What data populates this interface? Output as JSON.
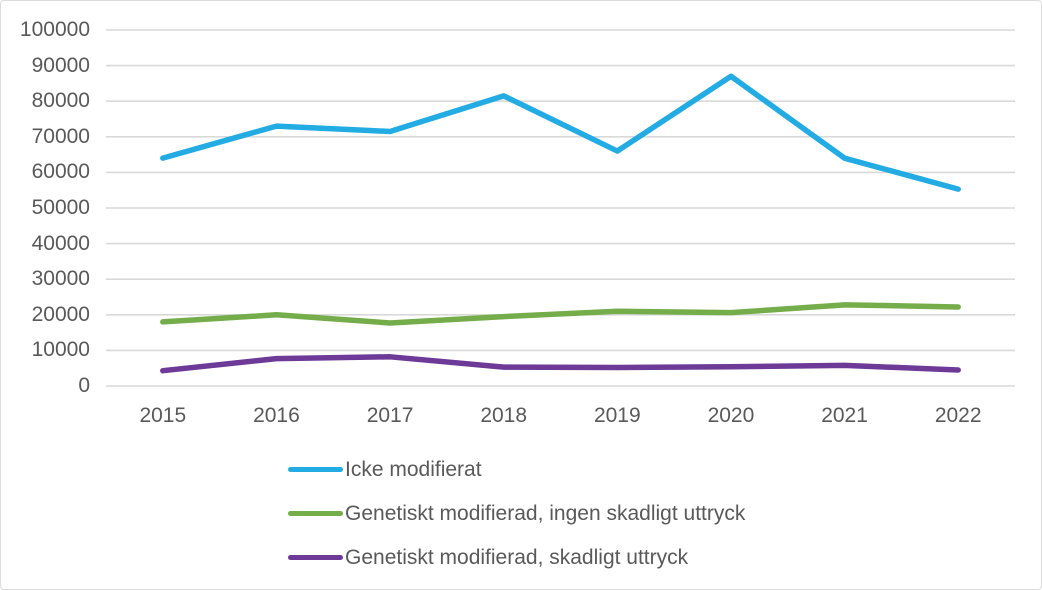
{
  "chart_data": {
    "type": "line",
    "title": "",
    "xlabel": "",
    "ylabel": "",
    "x": [
      "2015",
      "2016",
      "2017",
      "2018",
      "2019",
      "2020",
      "2021",
      "2022"
    ],
    "series": [
      {
        "name": "Icke modifierat",
        "color": "#22ACE3",
        "values": [
          64000,
          73000,
          71500,
          81500,
          66000,
          87000,
          64000,
          55300
        ]
      },
      {
        "name": "Genetiskt modifierad, ingen skadligt uttryck",
        "color": "#76AD4B",
        "values": [
          18000,
          20000,
          17700,
          19500,
          21000,
          20600,
          22800,
          22200
        ]
      },
      {
        "name": "Genetiskt modifierad, skadligt uttryck",
        "color": "#6D3A97",
        "values": [
          4300,
          7700,
          8200,
          5300,
          5200,
          5400,
          5800,
          4500
        ]
      }
    ],
    "ylim": [
      0,
      100000
    ],
    "ytick_step": 10000,
    "ytick_labels": [
      "100000",
      "90000",
      "80000",
      "70000",
      "60000",
      "50000",
      "40000",
      "30000",
      "20000",
      "10000",
      "0"
    ],
    "grid": "horizontal",
    "gridline_color": "#D9D9D9",
    "axis_label_color": "#595959",
    "legend_position": "bottom-left",
    "legend": [
      "Icke modifierat",
      "Genetiskt modifierad, ingen skadligt uttryck",
      "Genetiskt modifierad, skadligt uttryck"
    ]
  }
}
